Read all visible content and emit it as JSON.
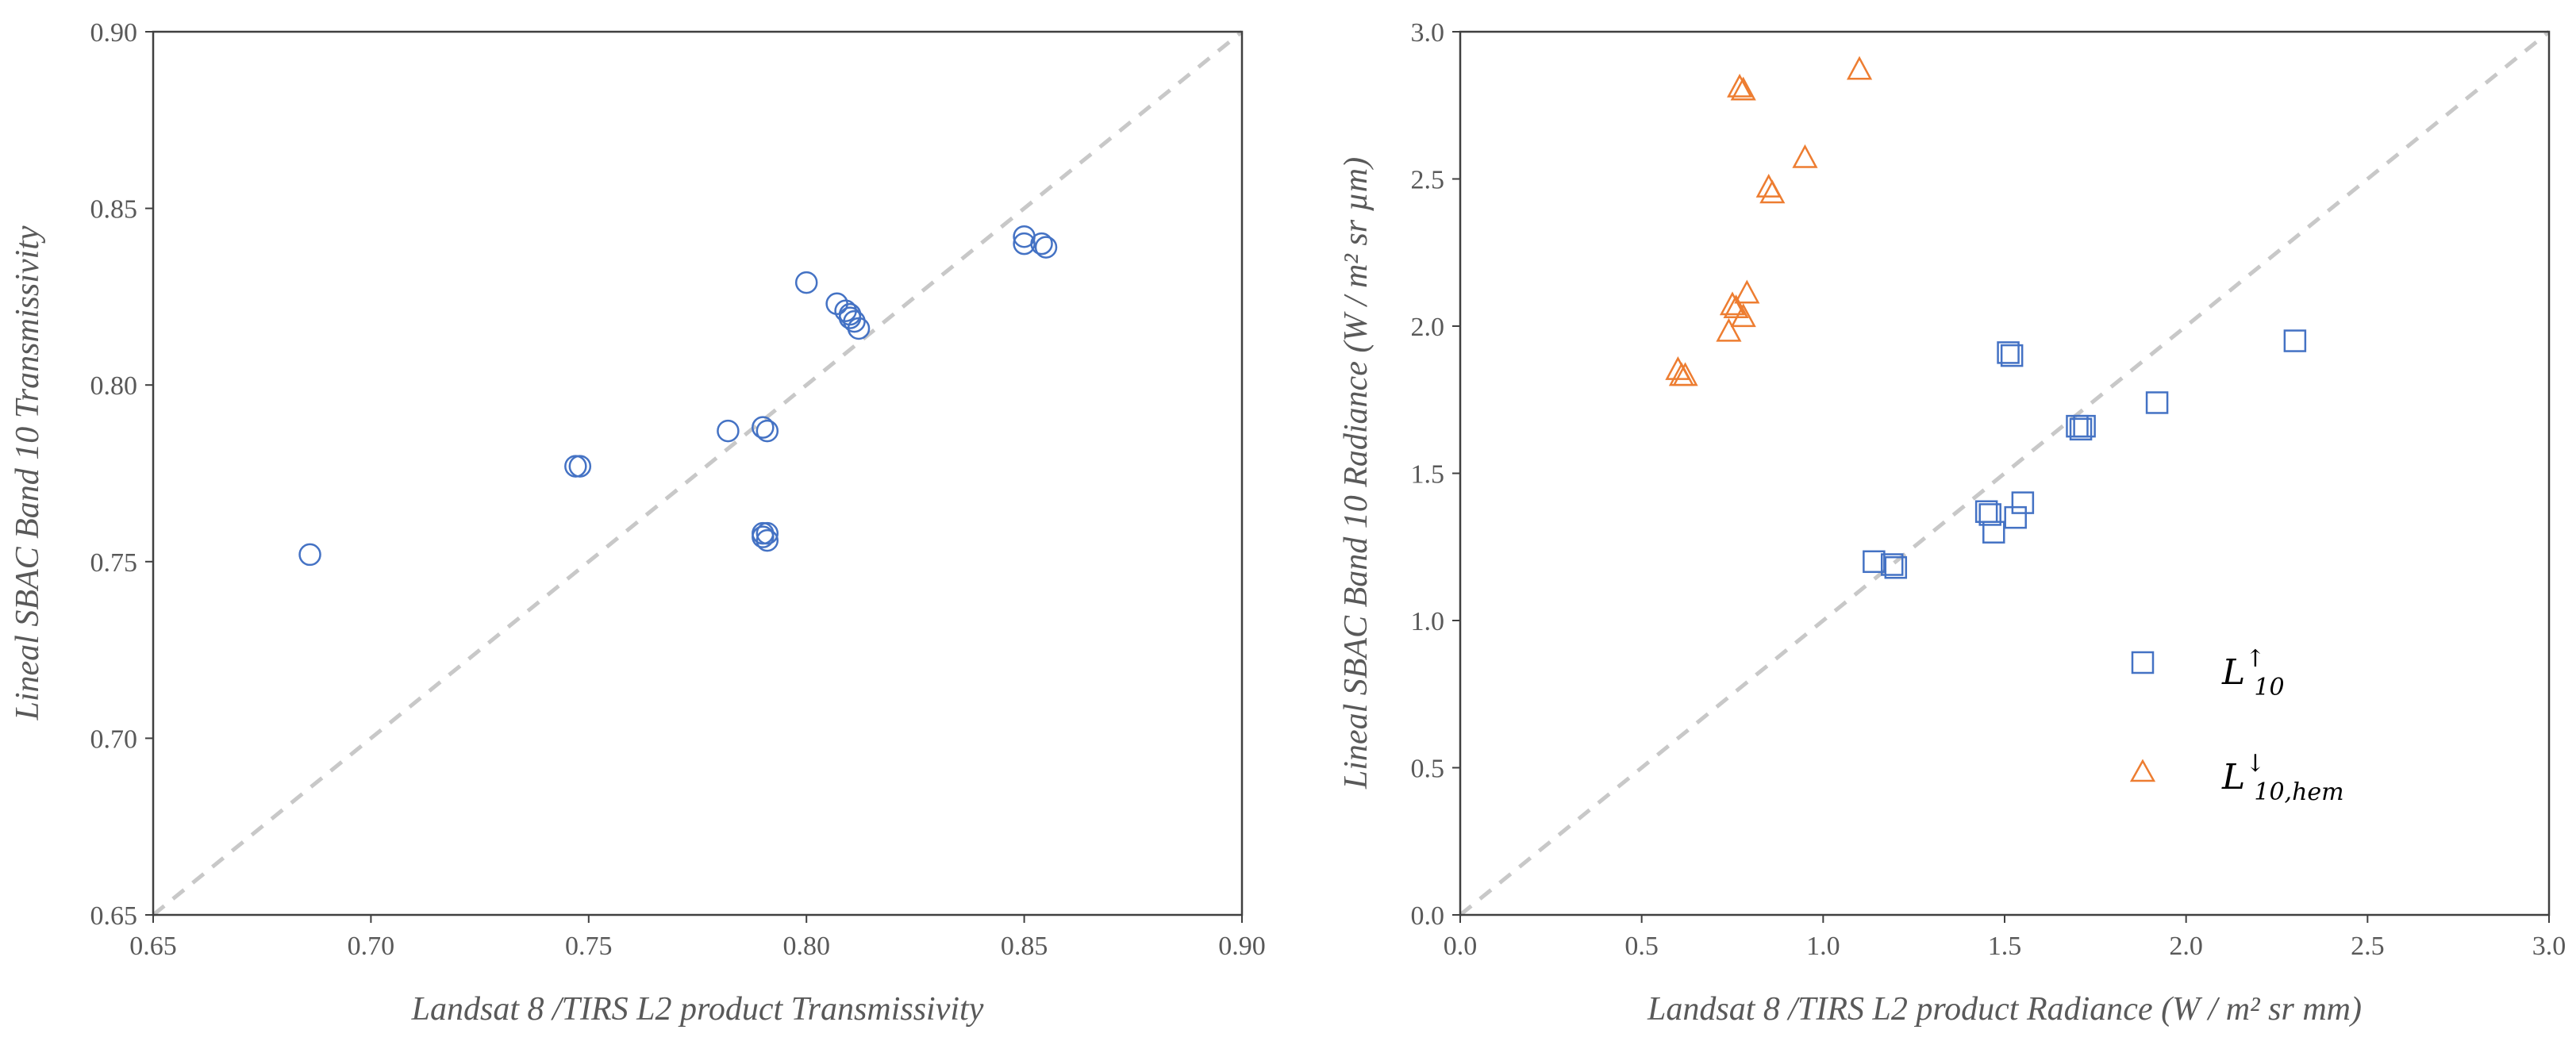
{
  "chart_data": [
    {
      "type": "scatter",
      "xlabel": "Landsat 8 /TIRS L2 product Transmissivity",
      "ylabel": "Lineal SBAC Band 10 Transmissivity",
      "xlim": [
        0.65,
        0.9
      ],
      "ylim": [
        0.65,
        0.9
      ],
      "xticks": [
        "0.65",
        "0.70",
        "0.75",
        "0.80",
        "0.85",
        "0.90"
      ],
      "yticks": [
        "0.65",
        "0.70",
        "0.75",
        "0.80",
        "0.85",
        "0.90"
      ],
      "identity_line": true,
      "series": [
        {
          "name": "Transmissivity",
          "marker": "circle",
          "color": "#4472C4",
          "points": [
            [
              0.686,
              0.752
            ],
            [
              0.747,
              0.777
            ],
            [
              0.748,
              0.777
            ],
            [
              0.782,
              0.787
            ],
            [
              0.79,
              0.788
            ],
            [
              0.791,
              0.787
            ],
            [
              0.79,
              0.758
            ],
            [
              0.791,
              0.758
            ],
            [
              0.79,
              0.757
            ],
            [
              0.791,
              0.756
            ],
            [
              0.8,
              0.829
            ],
            [
              0.807,
              0.823
            ],
            [
              0.809,
              0.821
            ],
            [
              0.81,
              0.82
            ],
            [
              0.81,
              0.819
            ],
            [
              0.811,
              0.818
            ],
            [
              0.812,
              0.816
            ],
            [
              0.85,
              0.842
            ],
            [
              0.85,
              0.84
            ],
            [
              0.854,
              0.84
            ],
            [
              0.855,
              0.839
            ]
          ]
        }
      ]
    },
    {
      "type": "scatter",
      "xlabel": "Landsat 8 /TIRS L2 product Radiance (W / m² sr mm)",
      "ylabel": "Lineal SBAC Band 10 Radiance (W / m² sr µm)",
      "xlim": [
        0.0,
        3.0
      ],
      "ylim": [
        0.0,
        3.0
      ],
      "xticks": [
        "0.0",
        "0.5",
        "1.0",
        "1.5",
        "2.0",
        "2.5",
        "3.0"
      ],
      "yticks": [
        "0.0",
        "0.5",
        "1.0",
        "1.5",
        "2.0",
        "2.5",
        "3.0"
      ],
      "identity_line": true,
      "legend_position": "bottom-right",
      "series": [
        {
          "name": "L↑10",
          "legend_main": "L",
          "legend_sup": "↑",
          "legend_sub": "10",
          "marker": "square",
          "color": "#4472C4",
          "points": [
            [
              1.14,
              1.2
            ],
            [
              1.19,
              1.19
            ],
            [
              1.2,
              1.18
            ],
            [
              1.45,
              1.37
            ],
            [
              1.46,
              1.36
            ],
            [
              1.47,
              1.3
            ],
            [
              1.51,
              1.91
            ],
            [
              1.52,
              1.9
            ],
            [
              1.53,
              1.35
            ],
            [
              1.55,
              1.4
            ],
            [
              1.7,
              1.66
            ],
            [
              1.71,
              1.65
            ],
            [
              1.72,
              1.66
            ],
            [
              1.92,
              1.74
            ],
            [
              2.3,
              1.95
            ]
          ]
        },
        {
          "name": "L↓10,hem",
          "legend_main": "L",
          "legend_sup": "↓",
          "legend_sub": "10,hem",
          "marker": "triangle",
          "color": "#ED7D31",
          "points": [
            [
              0.6,
              1.85
            ],
            [
              0.61,
              1.83
            ],
            [
              0.62,
              1.83
            ],
            [
              0.74,
              1.98
            ],
            [
              0.75,
              2.07
            ],
            [
              0.76,
              2.06
            ],
            [
              0.77,
              2.81
            ],
            [
              0.78,
              2.8
            ],
            [
              0.78,
              2.03
            ],
            [
              0.79,
              2.11
            ],
            [
              0.85,
              2.47
            ],
            [
              0.86,
              2.45
            ],
            [
              0.95,
              2.57
            ],
            [
              1.1,
              2.87
            ]
          ]
        }
      ]
    }
  ]
}
